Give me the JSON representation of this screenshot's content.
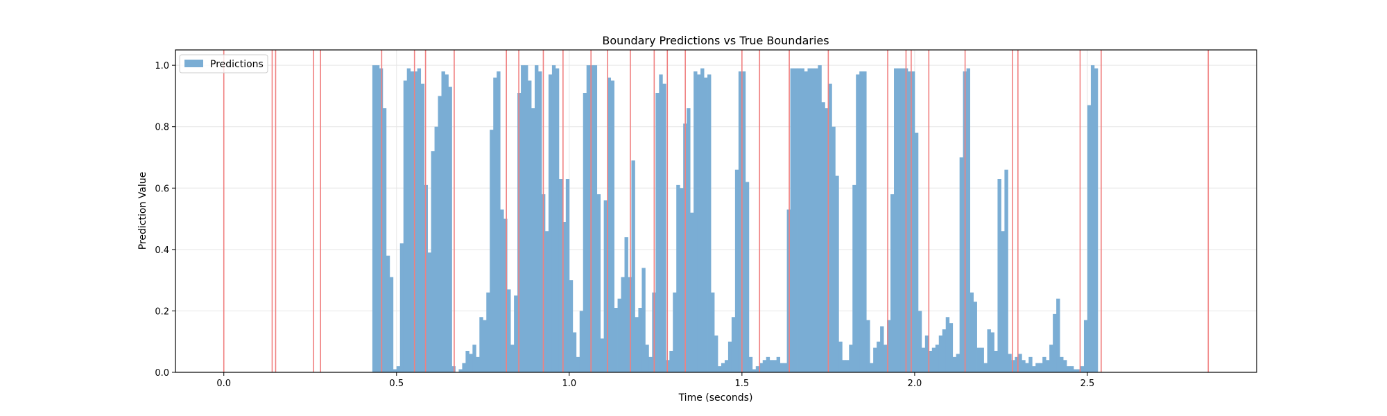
{
  "chart_data": {
    "type": "bar",
    "title": "Boundary Predictions vs True Boundaries",
    "xlabel": "Time (seconds)",
    "ylabel": "Prediction Value",
    "xlim": [
      -0.14,
      2.99
    ],
    "ylim": [
      0.0,
      1.05
    ],
    "x_ticks": [
      0.0,
      0.5,
      1.0,
      1.5,
      2.0,
      2.5
    ],
    "x_tick_labels": [
      "0.0",
      "0.5",
      "1.0",
      "1.5",
      "2.0",
      "2.5"
    ],
    "y_ticks": [
      0.0,
      0.2,
      0.4,
      0.6,
      0.8,
      1.0
    ],
    "y_tick_labels": [
      "0.0",
      "0.2",
      "0.4",
      "0.6",
      "0.8",
      "1.0"
    ],
    "grid": true,
    "legend": {
      "position": "top-left",
      "entries": [
        "Predictions"
      ]
    },
    "bar_width": 0.01,
    "predictions": {
      "name": "Predictions",
      "color": "#7aadd4",
      "x_start": 0.435,
      "x_step": 0.01,
      "values": [
        1.0,
        1.0,
        0.99,
        0.86,
        0.38,
        0.31,
        0.01,
        0.02,
        0.42,
        0.95,
        0.99,
        0.98,
        0.98,
        0.99,
        0.94,
        0.61,
        0.39,
        0.72,
        0.8,
        0.9,
        0.98,
        0.97,
        0.93,
        0.02,
        0.0,
        0.01,
        0.03,
        0.07,
        0.06,
        0.09,
        0.05,
        0.18,
        0.17,
        0.26,
        0.79,
        0.96,
        0.98,
        0.53,
        0.5,
        0.27,
        0.09,
        0.25,
        0.91,
        1.0,
        1.0,
        0.95,
        0.86,
        1.0,
        0.98,
        0.58,
        0.46,
        0.97,
        1.0,
        0.99,
        0.63,
        0.49,
        0.63,
        0.3,
        0.13,
        0.05,
        0.2,
        0.91,
        1.0,
        1.0,
        1.0,
        0.58,
        0.11,
        0.56,
        0.96,
        0.95,
        0.21,
        0.24,
        0.31,
        0.44,
        0.31,
        0.69,
        0.18,
        0.21,
        0.34,
        0.09,
        0.05,
        0.26,
        0.91,
        0.97,
        0.94,
        0.04,
        0.07,
        0.26,
        0.61,
        0.6,
        0.81,
        0.86,
        0.52,
        0.98,
        0.97,
        0.99,
        0.96,
        0.97,
        0.26,
        0.12,
        0.02,
        0.03,
        0.04,
        0.1,
        0.18,
        0.66,
        0.98,
        0.98,
        0.62,
        0.05,
        0.01,
        0.02,
        0.03,
        0.04,
        0.05,
        0.04,
        0.04,
        0.05,
        0.03,
        0.03,
        0.53,
        0.99,
        0.99,
        0.99,
        0.99,
        0.98,
        0.99,
        0.99,
        0.99,
        1.0,
        0.88,
        0.86,
        0.94,
        0.8,
        0.64,
        0.1,
        0.04,
        0.04,
        0.09,
        0.61,
        0.97,
        0.98,
        0.98,
        0.17,
        0.03,
        0.08,
        0.1,
        0.15,
        0.09,
        0.17,
        0.58,
        0.99,
        0.99,
        0.99,
        0.99,
        0.98,
        0.98,
        0.78,
        0.2,
        0.08,
        0.12,
        0.07,
        0.08,
        0.09,
        0.12,
        0.14,
        0.18,
        0.16,
        0.05,
        0.06,
        0.7,
        0.98,
        0.99,
        0.26,
        0.23,
        0.08,
        0.08,
        0.03,
        0.14,
        0.13,
        0.07,
        0.63,
        0.46,
        0.66,
        0.06,
        0.04,
        0.05,
        0.06,
        0.04,
        0.03,
        0.05,
        0.02,
        0.03,
        0.03,
        0.05,
        0.04,
        0.09,
        0.19,
        0.24,
        0.05,
        0.04,
        0.02,
        0.02,
        0.01,
        0.01,
        0.02,
        0.17,
        0.87,
        1.0,
        0.99
      ]
    },
    "true_boundaries": {
      "name": "True Boundaries",
      "color": "#f08080",
      "x": [
        0.0,
        0.14,
        0.15,
        0.26,
        0.28,
        0.457,
        0.552,
        0.584,
        0.667,
        0.818,
        0.854,
        0.925,
        0.982,
        1.063,
        1.111,
        1.177,
        1.246,
        1.284,
        1.336,
        1.5,
        1.551,
        1.637,
        1.75,
        1.922,
        1.975,
        1.99,
        2.041,
        2.146,
        2.283,
        2.299,
        2.479,
        2.54,
        2.85
      ]
    }
  }
}
